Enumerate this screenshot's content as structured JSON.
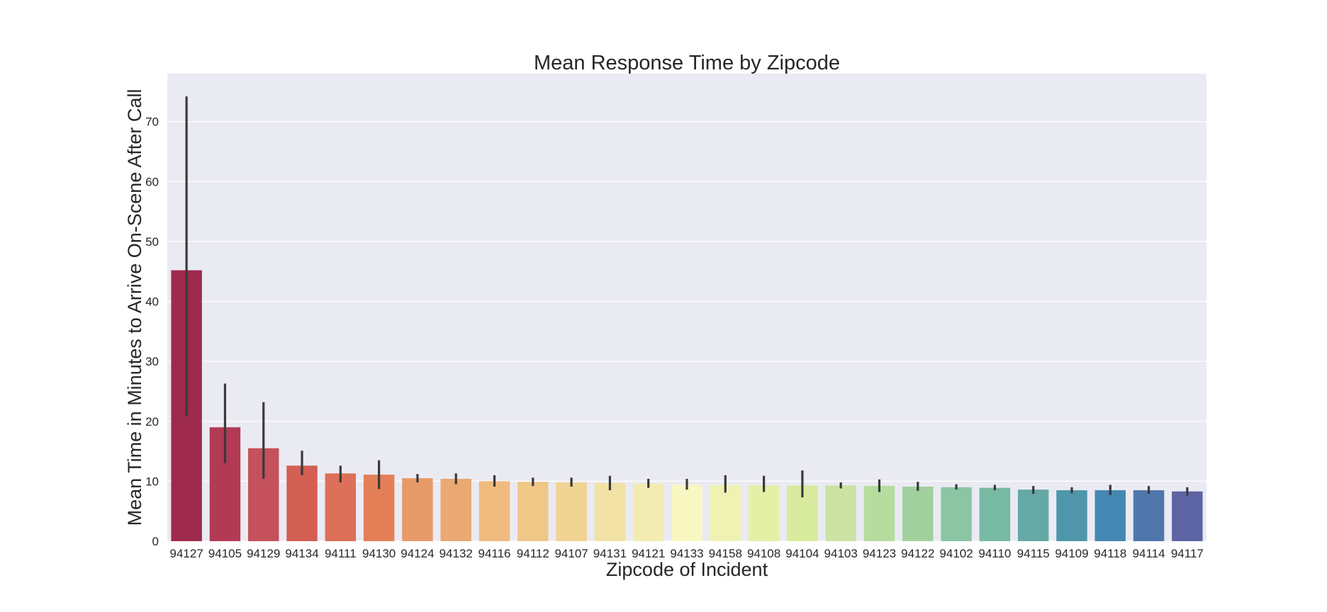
{
  "chart_data": {
    "type": "bar",
    "title": "Mean Response Time by Zipcode",
    "xlabel": "Zipcode of Incident",
    "ylabel": "Mean Time in Minutes to Arrive On-Scene After Call",
    "ylim": [
      0,
      78
    ],
    "yticks": [
      0,
      10,
      20,
      30,
      40,
      50,
      60,
      70
    ],
    "grid": true,
    "legend": "none",
    "categories": [
      "94127",
      "94105",
      "94129",
      "94134",
      "94111",
      "94130",
      "94124",
      "94132",
      "94116",
      "94112",
      "94107",
      "94131",
      "94121",
      "94133",
      "94158",
      "94108",
      "94104",
      "94103",
      "94123",
      "94122",
      "94102",
      "94110",
      "94115",
      "94109",
      "94118",
      "94114",
      "94117"
    ],
    "values": [
      45.2,
      19.0,
      15.5,
      12.6,
      11.3,
      11.1,
      10.5,
      10.4,
      10.0,
      9.9,
      9.8,
      9.7,
      9.6,
      9.4,
      9.4,
      9.3,
      9.3,
      9.3,
      9.2,
      9.1,
      9.0,
      8.9,
      8.6,
      8.5,
      8.5,
      8.5,
      8.3
    ],
    "errors": [
      [
        20.8,
        74.2
      ],
      [
        13.0,
        26.3
      ],
      [
        10.4,
        23.2
      ],
      [
        11.0,
        15.1
      ],
      [
        9.8,
        12.6
      ],
      [
        8.7,
        13.5
      ],
      [
        9.8,
        11.2
      ],
      [
        9.5,
        11.3
      ],
      [
        9.1,
        11.0
      ],
      [
        9.2,
        10.6
      ],
      [
        9.1,
        10.6
      ],
      [
        8.5,
        10.9
      ],
      [
        8.9,
        10.4
      ],
      [
        8.6,
        10.4
      ],
      [
        8.1,
        11.0
      ],
      [
        8.2,
        10.9
      ],
      [
        7.3,
        11.8
      ],
      [
        8.8,
        9.8
      ],
      [
        8.2,
        10.3
      ],
      [
        8.4,
        9.9
      ],
      [
        8.6,
        9.5
      ],
      [
        8.5,
        9.4
      ],
      [
        7.9,
        9.2
      ],
      [
        8.0,
        9.0
      ],
      [
        7.7,
        9.4
      ],
      [
        7.9,
        9.2
      ],
      [
        7.6,
        9.0
      ]
    ],
    "colors": [
      "#9e2a4d",
      "#b23a54",
      "#c4515b",
      "#d25f52",
      "#dc7058",
      "#e47f57",
      "#e79a67",
      "#eaa872",
      "#efbb7e",
      "#efc787",
      "#f1d492",
      "#f2e1a5",
      "#f3ecb2",
      "#f8f7c1",
      "#eff2b3",
      "#e5f0a7",
      "#d8ea9d",
      "#cce3a4",
      "#b6dc9e",
      "#a2d09d",
      "#8cc5a3",
      "#78b9a3",
      "#64a9a5",
      "#4f96ac",
      "#4487b3",
      "#4f77ac",
      "#5d64a3"
    ]
  }
}
